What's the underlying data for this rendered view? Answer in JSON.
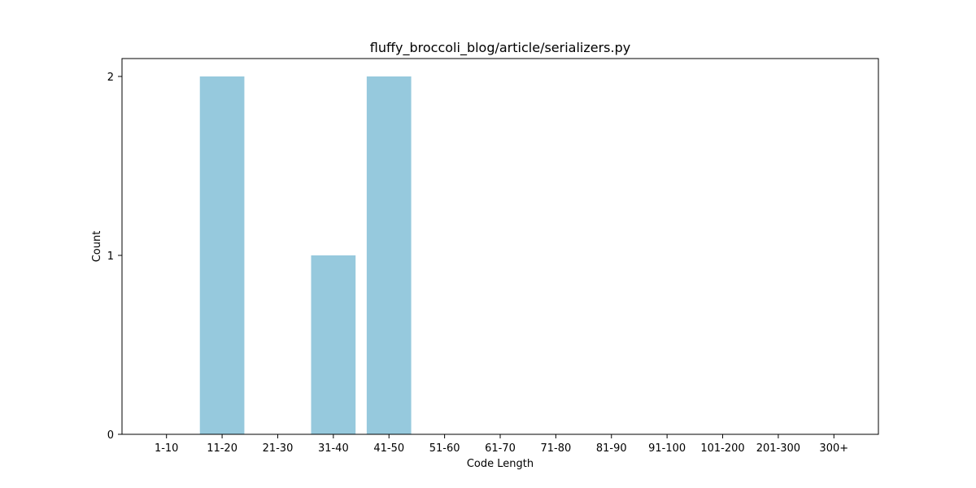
{
  "chart_data": {
    "type": "bar",
    "title": "fluffy_broccoli_blog/article/serializers.py",
    "xlabel": "Code Length",
    "ylabel": "Count",
    "categories": [
      "1-10",
      "11-20",
      "21-30",
      "31-40",
      "41-50",
      "51-60",
      "61-70",
      "71-80",
      "81-90",
      "91-100",
      "101-200",
      "201-300",
      "300+"
    ],
    "values": [
      0,
      2,
      0,
      1,
      2,
      0,
      0,
      0,
      0,
      0,
      0,
      0,
      0
    ],
    "yticks": [
      0,
      1,
      2
    ],
    "ylim": [
      0,
      2.1
    ],
    "bar_color": "#96c9dd",
    "grid": false,
    "legend": "none"
  }
}
